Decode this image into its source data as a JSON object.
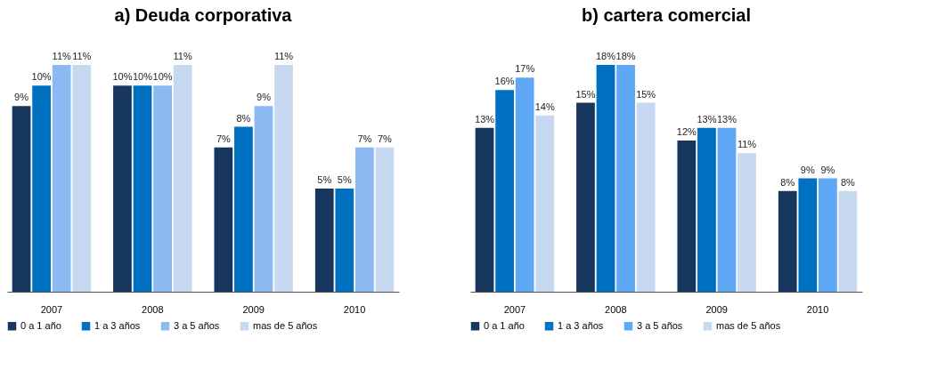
{
  "chart_data": [
    {
      "type": "bar",
      "title": "a) Deuda corporativa",
      "categories": [
        "2007",
        "2008",
        "2009",
        "2010"
      ],
      "legend": "bottom",
      "tick_labels": "x",
      "series": [
        {
          "name": "0 a 1 año",
          "color": "#17375e",
          "values": [
            9,
            10,
            7,
            5
          ],
          "value_labels": [
            "9%",
            "10%",
            "7%",
            "5%"
          ]
        },
        {
          "name": "1 a 3 años",
          "color": "#0070c0",
          "values": [
            10,
            10,
            8,
            5
          ],
          "value_labels": [
            "10%",
            "10%",
            "8%",
            "5%"
          ]
        },
        {
          "name": "3 a 5 años",
          "color": "#8db9f2",
          "values": [
            11,
            10,
            9,
            7
          ],
          "value_labels": [
            "11%",
            "10%",
            "9%",
            "7%"
          ]
        },
        {
          "name": "mas de 5 años",
          "color": "#c6d9f1",
          "values": [
            11,
            11,
            11,
            7
          ],
          "value_labels": [
            "11%",
            "11%",
            "11%",
            "7%"
          ]
        }
      ]
    },
    {
      "type": "bar",
      "title": "b) cartera comercial",
      "categories": [
        "2007",
        "2008",
        "2009",
        "2010"
      ],
      "legend": "bottom",
      "tick_labels": "x",
      "series": [
        {
          "name": "0 a 1 año",
          "color": "#17375e",
          "values": [
            13,
            15,
            12,
            8
          ],
          "value_labels": [
            "13%",
            "15%",
            "12%",
            "8%"
          ]
        },
        {
          "name": "1 a 3 años",
          "color": "#0070c0",
          "values": [
            16,
            18,
            13,
            9
          ],
          "value_labels": [
            "16%",
            "18%",
            "13%",
            "9%"
          ]
        },
        {
          "name": "3 a 5 años",
          "color": "#5fa8f5",
          "values": [
            17,
            18,
            13,
            9
          ],
          "value_labels": [
            "17%",
            "18%",
            "13%",
            "9%"
          ]
        },
        {
          "name": "mas de 5 años",
          "color": "#c6d9f1",
          "values": [
            14,
            15,
            11,
            8
          ],
          "value_labels": [
            "14%",
            "15%",
            "11%",
            "8%"
          ]
        }
      ]
    }
  ]
}
